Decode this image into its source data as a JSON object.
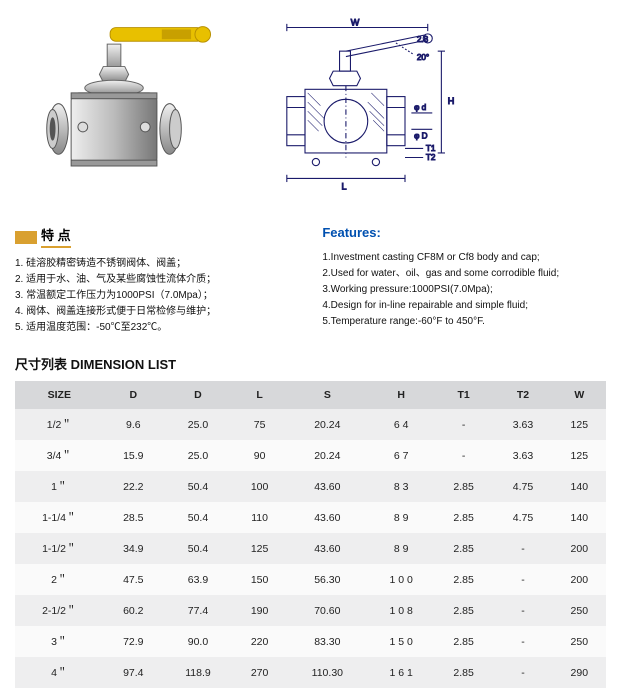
{
  "features_cn": {
    "title": "特 点",
    "items": [
      "1. 硅溶胶精密铸造不锈钢阀体、阀盖；",
      "2. 适用于水、油、气及某些腐蚀性流体介质；",
      "3. 常温额定工作压力为1000PSI（7.0Mpa）；",
      "4. 阀体、阀盖连接形式便于日常检修与维护；",
      "5. 适用温度范围：-50℃至232℃。"
    ]
  },
  "features_en": {
    "title": "Features:",
    "items": [
      "1.Investment casting CF8M or Cf8 body and cap;",
      "2.Used for water、oil、gas and some corrodible fluid;",
      "3.Working pressure:1000PSI(7.0Mpa);",
      "4.Design for in-line repairable and simple fluid;",
      "5.Temperature range:-60°F to 450°F."
    ]
  },
  "dimension_title": "尺寸列表  DIMENSION LIST",
  "table": {
    "columns": [
      "SIZE",
      "D",
      "D",
      "L",
      "S",
      "H",
      "T1",
      "T2",
      "W"
    ],
    "rows": [
      [
        "1/2＂",
        "9.6",
        "25.0",
        "75",
        "20.24",
        "6 4",
        "-",
        "3.63",
        "125"
      ],
      [
        "3/4＂",
        "15.9",
        "25.0",
        "90",
        "20.24",
        "6 7",
        "-",
        "3.63",
        "125"
      ],
      [
        "1＂",
        "22.2",
        "50.4",
        "100",
        "43.60",
        "8 3",
        "2.85",
        "4.75",
        "140"
      ],
      [
        "1-1/4＂",
        "28.5",
        "50.4",
        "110",
        "43.60",
        "8 9",
        "2.85",
        "4.75",
        "140"
      ],
      [
        "1-1/2＂",
        "34.9",
        "50.4",
        "125",
        "43.60",
        "8 9",
        "2.85",
        "-",
        "200"
      ],
      [
        "2＂",
        "47.5",
        "63.9",
        "150",
        "56.30",
        "1 0 0",
        "2.85",
        "-",
        "200"
      ],
      [
        "2-1/2＂",
        "60.2",
        "77.4",
        "190",
        "70.60",
        "1 0 8",
        "2.85",
        "-",
        "250"
      ],
      [
        "3＂",
        "72.9",
        "90.0",
        "220",
        "83.30",
        "1 5 0",
        "2.85",
        "-",
        "250"
      ],
      [
        "4＂",
        "97.4",
        "118.9",
        "270",
        "110.30",
        "1 6 1",
        "2.85",
        "-",
        "290"
      ]
    ]
  },
  "diagram_labels": {
    "W": "W",
    "H": "H",
    "L": "L",
    "T1": "T1",
    "T2": "T2",
    "phi_d": "φ d",
    "phi_D": "φ D",
    "angle": "20°",
    "pipe": "2.8"
  },
  "colors": {
    "handle": "#e8c000",
    "metal_light": "#d8d8d8",
    "metal_mid": "#b8b8b8",
    "metal_dark": "#888888",
    "line": "#1a1a6a",
    "th_bg": "#d7d8da",
    "odd_bg": "#eeeeef",
    "even_bg": "#fafafa"
  }
}
